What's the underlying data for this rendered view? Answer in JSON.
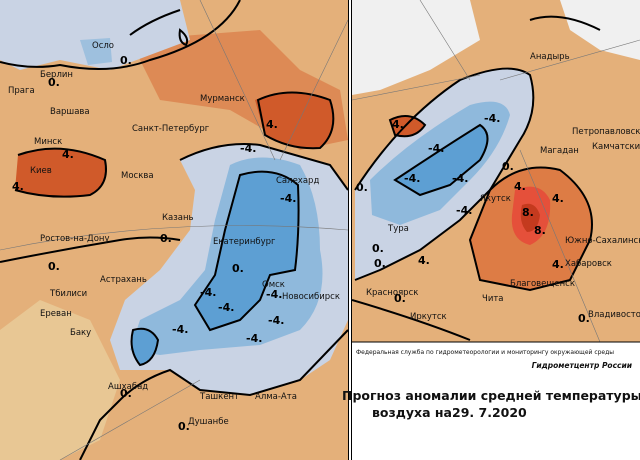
{
  "left_map": {
    "cities": [
      "Осло",
      "Берлин",
      "Прага",
      "Варшава",
      "Санкт-Петербург",
      "Мурманск",
      "Минск",
      "Киев",
      "Москва",
      "Казань",
      "Ростов-на-Дону",
      "Екатеринбург",
      "Салехард",
      "Астрахань",
      "Тбилиси",
      "Ереван",
      "Баку",
      "Омск",
      "Новосибирск",
      "Ашхабад",
      "Ташкент",
      "Алма-Ата",
      "Душанбе"
    ],
    "contour_labels": [
      "0.",
      "0.",
      "4.",
      "4.",
      "4.",
      "-4.",
      "-4.",
      "-4.",
      "-4.",
      "-4.",
      "-4.",
      "-4.",
      "-4.",
      "0.",
      "0.",
      "0.",
      "0.",
      "0."
    ]
  },
  "right_map": {
    "cities": [
      "Анадырь",
      "Петропавловск",
      "Камчатский",
      "Магадан",
      "Якутск",
      "Тура",
      "Южно-Сахалинск",
      "Хабаровск",
      "Благовещенск",
      "Красноярск",
      "Чита",
      "Иркутск",
      "Владивосток"
    ],
    "contour_labels": [
      "0.",
      "-4.",
      "-4.",
      "-4.",
      "-4.",
      "-4.",
      "4.",
      "4.",
      "4.",
      "8.",
      "8.",
      "0.",
      "0.",
      "0.",
      "4.",
      "4.",
      "0.",
      "0."
    ]
  },
  "footer": {
    "agency": "Федеральная служба по гидрометеорологии и мониторингу окружающей среды",
    "center": "Гидрометцентр России",
    "title_line1": "Прогноз аномалии средней температуры",
    "title_line2": "воздуха на",
    "date": "29. 7.2020"
  }
}
